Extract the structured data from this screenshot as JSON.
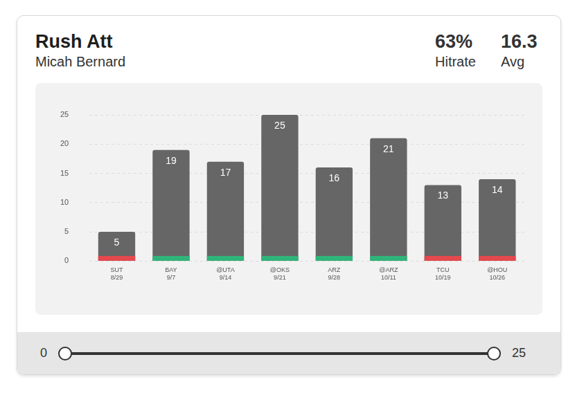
{
  "chart_data": {
    "type": "bar",
    "title": "Rush Att",
    "subtitle": "Micah Bernard",
    "stats": [
      {
        "value": "63%",
        "label": "Hitrate"
      },
      {
        "value": "16.3",
        "label": "Avg"
      }
    ],
    "categories": [
      "SUT",
      "BAY",
      "@UTA",
      "@OKS",
      "ARZ",
      "@ARZ",
      "TCU",
      "@HOU"
    ],
    "dates": [
      "8/29",
      "9/7",
      "9/14",
      "9/21",
      "9/28",
      "10/11",
      "10/19",
      "10/26"
    ],
    "values": [
      5,
      19,
      17,
      25,
      16,
      21,
      13,
      14
    ],
    "color": "#666666",
    "hit_colors": [
      "#e5484d",
      "#30b47a",
      "#30b47a",
      "#30b47a",
      "#30b47a",
      "#30b47a",
      "#e5484d",
      "#e5484d"
    ],
    "ylim": [
      0,
      25
    ],
    "yticks": [
      0,
      5,
      10,
      15,
      20,
      25
    ],
    "grid": true,
    "data_labels": true,
    "slider": {
      "min": 0,
      "max": 25
    }
  }
}
